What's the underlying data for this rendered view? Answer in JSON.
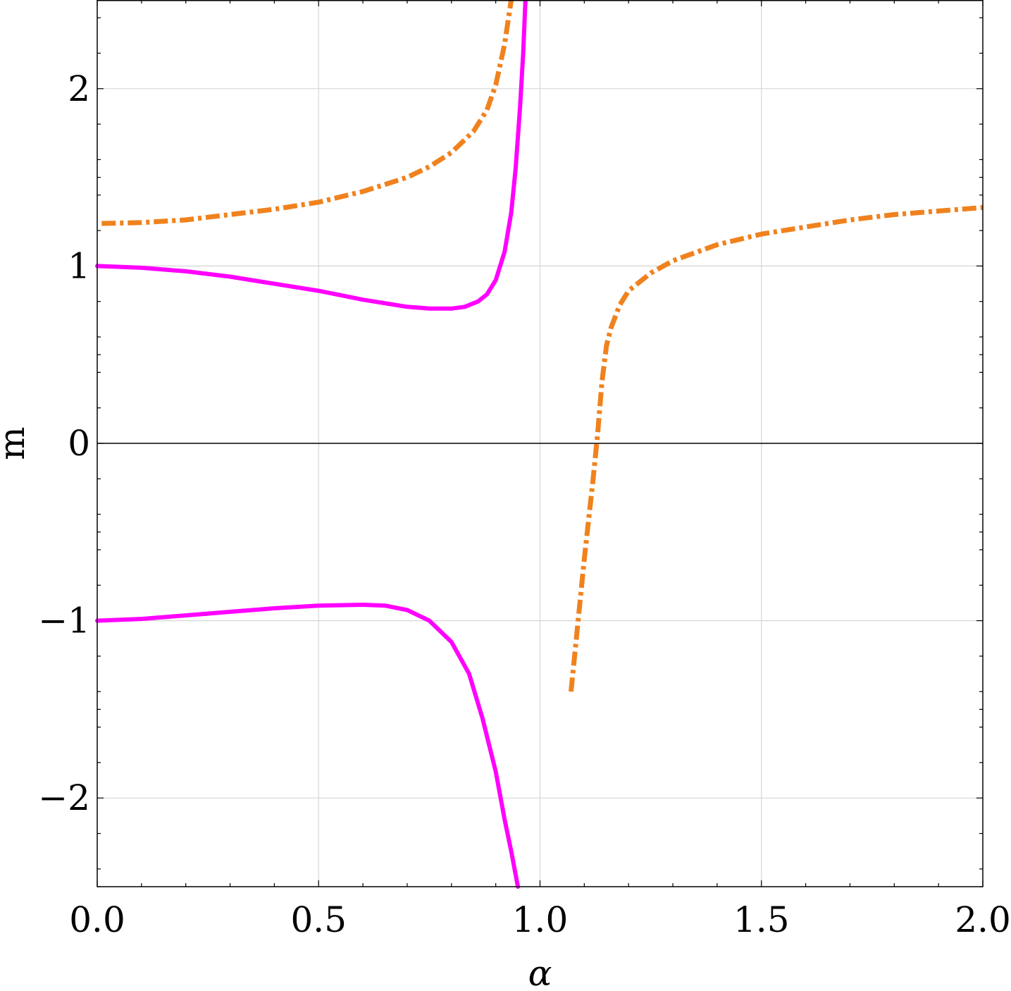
{
  "chart_data": {
    "type": "line",
    "xlabel": "α",
    "ylabel": "m",
    "xlim": [
      0,
      2
    ],
    "ylim": [
      -2.5,
      2.5
    ],
    "grid": true,
    "x_ticks": [
      {
        "value": 0,
        "label": "0.0"
      },
      {
        "value": 0.5,
        "label": "0.5"
      },
      {
        "value": 1,
        "label": "1.0"
      },
      {
        "value": 1.5,
        "label": "1.5"
      },
      {
        "value": 2,
        "label": "2.0"
      }
    ],
    "y_ticks": [
      {
        "value": -2,
        "label": "−2"
      },
      {
        "value": -1,
        "label": "−1"
      },
      {
        "value": 0,
        "label": "0"
      },
      {
        "value": 1,
        "label": "1"
      },
      {
        "value": 2,
        "label": "2"
      }
    ],
    "series": [
      {
        "color": "#ff00ff",
        "style": "solid",
        "segments": [
          [
            [
              0,
              1.0
            ],
            [
              0.1,
              0.99
            ],
            [
              0.2,
              0.97
            ],
            [
              0.3,
              0.94
            ],
            [
              0.4,
              0.9
            ],
            [
              0.5,
              0.86
            ],
            [
              0.6,
              0.81
            ],
            [
              0.7,
              0.77
            ],
            [
              0.75,
              0.76
            ],
            [
              0.8,
              0.76
            ],
            [
              0.83,
              0.77
            ],
            [
              0.86,
              0.8
            ],
            [
              0.88,
              0.84
            ],
            [
              0.9,
              0.92
            ],
            [
              0.92,
              1.08
            ],
            [
              0.935,
              1.3
            ],
            [
              0.945,
              1.55
            ],
            [
              0.955,
              1.9
            ],
            [
              0.962,
              2.2
            ],
            [
              0.967,
              2.5
            ]
          ],
          [
            [
              0,
              -1.0
            ],
            [
              0.1,
              -0.99
            ],
            [
              0.2,
              -0.97
            ],
            [
              0.3,
              -0.95
            ],
            [
              0.4,
              -0.93
            ],
            [
              0.5,
              -0.915
            ],
            [
              0.6,
              -0.91
            ],
            [
              0.65,
              -0.915
            ],
            [
              0.7,
              -0.94
            ],
            [
              0.75,
              -1.0
            ],
            [
              0.8,
              -1.12
            ],
            [
              0.84,
              -1.3
            ],
            [
              0.87,
              -1.55
            ],
            [
              0.9,
              -1.85
            ],
            [
              0.92,
              -2.12
            ],
            [
              0.935,
              -2.3
            ],
            [
              0.95,
              -2.5
            ]
          ]
        ]
      },
      {
        "color": "#f0821e",
        "style": "dotdash",
        "segments": [
          [
            [
              0.01,
              1.24
            ],
            [
              0.1,
              1.245
            ],
            [
              0.2,
              1.26
            ],
            [
              0.3,
              1.29
            ],
            [
              0.4,
              1.32
            ],
            [
              0.5,
              1.36
            ],
            [
              0.6,
              1.42
            ],
            [
              0.7,
              1.5
            ],
            [
              0.75,
              1.56
            ],
            [
              0.8,
              1.64
            ],
            [
              0.85,
              1.76
            ],
            [
              0.88,
              1.88
            ],
            [
              0.9,
              2.02
            ],
            [
              0.92,
              2.25
            ],
            [
              0.935,
              2.5
            ]
          ],
          [
            [
              1.07,
              -1.4
            ],
            [
              1.08,
              -1.15
            ],
            [
              1.1,
              -0.65
            ],
            [
              1.12,
              -0.2
            ],
            [
              1.13,
              0.05
            ],
            [
              1.14,
              0.35
            ],
            [
              1.15,
              0.55
            ],
            [
              1.16,
              0.65
            ],
            [
              1.18,
              0.78
            ],
            [
              1.2,
              0.86
            ],
            [
              1.25,
              0.96
            ],
            [
              1.3,
              1.03
            ],
            [
              1.4,
              1.12
            ],
            [
              1.5,
              1.18
            ],
            [
              1.6,
              1.22
            ],
            [
              1.7,
              1.26
            ],
            [
              1.8,
              1.29
            ],
            [
              1.9,
              1.31
            ],
            [
              2.0,
              1.33
            ]
          ]
        ]
      }
    ]
  }
}
